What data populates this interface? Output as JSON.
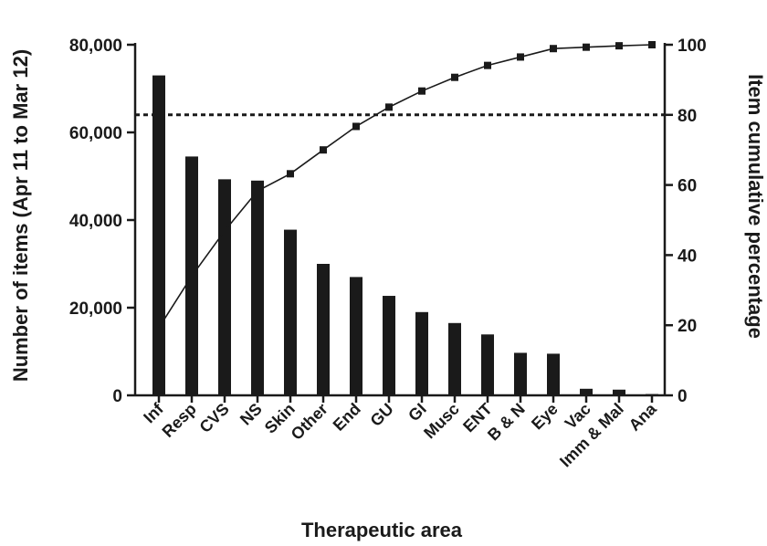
{
  "chart_data": {
    "type": "bar",
    "title": "",
    "xlabel": "Therapeutic area",
    "ylabel": "Number of items (Apr 11 to Mar 12)",
    "y2label": "Item cumulative percentage",
    "categories": [
      "Inf",
      "Resp",
      "CVS",
      "NS",
      "Skin",
      "Other",
      "End",
      "GU",
      "GI",
      "Musc",
      "ENT",
      "B & N",
      "Eye",
      "Vac",
      "Imm & Mal",
      "Ana"
    ],
    "series": [
      {
        "type": "bar",
        "axis": "left",
        "values": [
          73000,
          54500,
          49300,
          49000,
          37800,
          30000,
          27000,
          22700,
          19000,
          16500,
          13900,
          9700,
          9500,
          1500,
          1300,
          300
        ]
      },
      {
        "type": "line",
        "axis": "right",
        "values": [
          19.3,
          34.0,
          46.9,
          58.3,
          63.2,
          70.0,
          76.7,
          82.2,
          86.8,
          90.7,
          94.1,
          96.5,
          98.9,
          99.3,
          99.7,
          100.0
        ]
      }
    ],
    "reference_line": {
      "axis": "right",
      "value": 80,
      "style": "dashed"
    },
    "ylim": [
      0,
      80000
    ],
    "y2lim": [
      0,
      100
    ],
    "yticks": [
      0,
      20000,
      40000,
      60000,
      80000
    ],
    "ytick_labels": [
      "0",
      "20,000",
      "40,000",
      "60,000",
      "80,000"
    ],
    "y2ticks": [
      0,
      20,
      40,
      60,
      80,
      100
    ],
    "y2tick_labels": [
      "0",
      "20",
      "40",
      "60",
      "80",
      "100"
    ],
    "grid": false,
    "colors": {
      "bars": "#1a1a1a",
      "line": "#1a1a1a",
      "axes": "#1a1a1a"
    }
  }
}
